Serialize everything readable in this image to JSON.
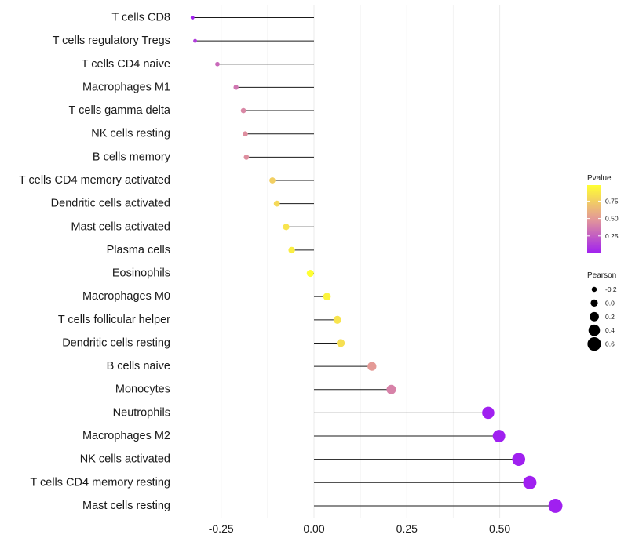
{
  "chart_data": {
    "type": "lollipop",
    "title": "",
    "xlabel": "",
    "ylabel": "",
    "xlim": [
      -0.36,
      0.66
    ],
    "xticks": [
      -0.25,
      0.0,
      0.25,
      0.5
    ],
    "xtick_labels": [
      "-0.25",
      "0.00",
      "0.25",
      "0.50"
    ],
    "grid": true,
    "categories": [
      "T cells CD8",
      "T cells regulatory  Tregs",
      "T cells CD4 naive",
      "Macrophages M1",
      "T cells gamma delta",
      "NK cells resting",
      "B cells memory",
      "T cells CD4 memory activated",
      "Dendritic cells activated",
      "Mast cells activated",
      "Plasma cells",
      "Eosinophils",
      "Macrophages M0",
      "T cells follicular helper",
      "Dendritic cells resting",
      "B cells naive",
      "Monocytes",
      "Neutrophils",
      "Macrophages M2",
      "NK cells activated",
      "T cells CD4 memory resting",
      "Mast cells resting"
    ],
    "pearson": [
      -0.327,
      -0.32,
      -0.26,
      -0.21,
      -0.19,
      -0.185,
      -0.182,
      -0.112,
      -0.1,
      -0.075,
      -0.06,
      -0.01,
      0.035,
      0.063,
      0.072,
      0.156,
      0.208,
      0.469,
      0.498,
      0.551,
      0.581,
      0.65
    ],
    "pvalue": [
      0.01,
      0.12,
      0.3,
      0.35,
      0.42,
      0.45,
      0.45,
      0.75,
      0.8,
      0.85,
      0.9,
      0.99,
      0.93,
      0.85,
      0.83,
      0.5,
      0.4,
      0.0,
      0.0,
      0.0,
      0.0,
      0.0
    ],
    "color_legend": {
      "title": "Pvalue",
      "ticks": [
        "0.25",
        "0.50",
        "0.75"
      ],
      "tick_values": [
        0.25,
        0.5,
        0.75
      ],
      "low_color": "#A020F0",
      "mid_color": "#E39898",
      "high_color": "#FFFF33",
      "range": [
        0.0,
        0.98
      ]
    },
    "size_legend": {
      "title": "Pearson",
      "labels": [
        "-0.2",
        "0.0",
        "0.2",
        "0.4",
        "0.6"
      ],
      "values": [
        -0.2,
        0.0,
        0.2,
        0.4,
        0.6
      ]
    },
    "legend_position": "right"
  }
}
